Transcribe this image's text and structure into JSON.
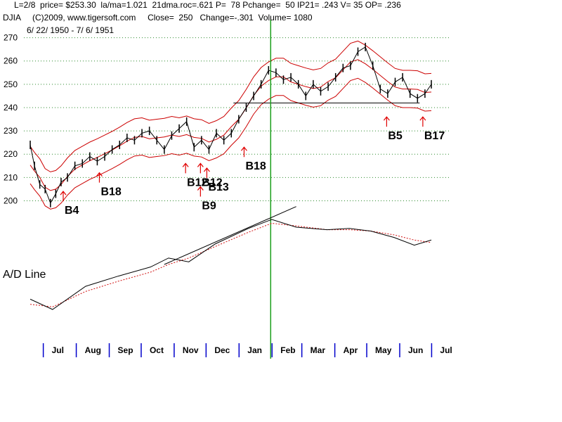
{
  "header": {
    "line1": "L=2/8  price= $253.30  la/ma=1.021  21dma.roc=.621 P=  78 Pchange=  50 IP21= .243 V= 35 OP= .236",
    "line2": "DJIA     (C)2009, www.tigersoft.com     Close=  250   Change=-.301  Volume= 1080",
    "line3": "6/ 22/ 1950 - 7/ 6/ 1951"
  },
  "chart_data": {
    "type": "line",
    "title": "DJIA",
    "x_range": [
      "1950-06-22",
      "1951-07-06"
    ],
    "ylim": [
      195,
      272
    ],
    "yticks": [
      200,
      210,
      220,
      230,
      240,
      250,
      260,
      270
    ],
    "month_labels": [
      "Jul",
      "Aug",
      "Sep",
      "Oct",
      "Nov",
      "Dec",
      "Jan",
      "Feb",
      "Mar",
      "Apr",
      "May",
      "Jun",
      "Jul"
    ],
    "grid": "horizontal dotted",
    "series": [
      {
        "name": "DJIA",
        "color": "#000000",
        "x": [
          "1950-06-24",
          "1950-06-28",
          "1950-07-03",
          "1950-07-08",
          "1950-07-13",
          "1950-07-18",
          "1950-07-23",
          "1950-07-29",
          "1950-08-05",
          "1950-08-12",
          "1950-08-19",
          "1950-08-26",
          "1950-09-02",
          "1950-09-09",
          "1950-09-16",
          "1950-09-23",
          "1950-09-30",
          "1950-10-07",
          "1950-10-14",
          "1950-10-21",
          "1950-10-28",
          "1950-11-04",
          "1950-11-11",
          "1950-11-18",
          "1950-11-25",
          "1950-12-02",
          "1950-12-09",
          "1950-12-16",
          "1950-12-23",
          "1950-12-30",
          "1951-01-06",
          "1951-01-13",
          "1951-01-20",
          "1951-01-27",
          "1951-02-03",
          "1951-02-10",
          "1951-02-17",
          "1951-02-24",
          "1951-03-03",
          "1951-03-10",
          "1951-03-17",
          "1951-03-24",
          "1951-03-31",
          "1951-04-07",
          "1951-04-14",
          "1951-04-21",
          "1951-04-28",
          "1951-05-05",
          "1951-05-12",
          "1951-05-19",
          "1951-05-26",
          "1951-06-02",
          "1951-06-09",
          "1951-06-16",
          "1951-06-23",
          "1951-06-30",
          "1951-07-06"
        ],
        "values": [
          224,
          215,
          207,
          205,
          199,
          203,
          208,
          210,
          215,
          216,
          219,
          217,
          219,
          222,
          224,
          227,
          226,
          229,
          230,
          226,
          222,
          228,
          231,
          234,
          223,
          226,
          222,
          229,
          226,
          229,
          235,
          240,
          245,
          250,
          256,
          255,
          252,
          253,
          250,
          245,
          250,
          247,
          249,
          253,
          257,
          258,
          264,
          266,
          258,
          248,
          246,
          251,
          253,
          246,
          244,
          246,
          250
        ]
      }
    ],
    "annotations": [
      {
        "label": "B4",
        "x": "1950-07-25",
        "y": 201
      },
      {
        "label": "B18",
        "x": "1950-08-28",
        "y": 209
      },
      {
        "label": "B12",
        "x": "1950-11-17",
        "y": 213
      },
      {
        "label": "B12",
        "x": "1950-12-01",
        "y": 213
      },
      {
        "label": "B9",
        "x": "1950-12-01",
        "y": 203
      },
      {
        "label": "B13",
        "x": "1950-12-07",
        "y": 211
      },
      {
        "label": "B18",
        "x": "1951-01-11",
        "y": 220
      },
      {
        "label": "B5",
        "x": "1951-05-25",
        "y": 233
      },
      {
        "label": "B17",
        "x": "1951-06-28",
        "y": 233
      }
    ],
    "indicator": {
      "label": "A/D Line",
      "x": [
        "1950-06-24",
        "1950-07-15",
        "1950-08-15",
        "1950-09-15",
        "1950-10-15",
        "1950-11-01",
        "1950-11-20",
        "1950-12-15",
        "1951-01-15",
        "1951-02-06",
        "1951-03-01",
        "1951-03-30",
        "1951-04-20",
        "1951-05-10",
        "1951-06-01",
        "1951-06-20",
        "1951-07-06"
      ],
      "values": [
        20,
        12,
        30,
        38,
        45,
        52,
        49,
        63,
        75,
        82,
        76,
        74,
        75,
        73,
        68,
        62,
        66
      ],
      "ma_values": [
        16,
        14,
        26,
        34,
        41,
        47,
        52,
        61,
        72,
        79,
        77,
        74,
        74,
        73,
        70,
        66,
        64
      ]
    }
  }
}
